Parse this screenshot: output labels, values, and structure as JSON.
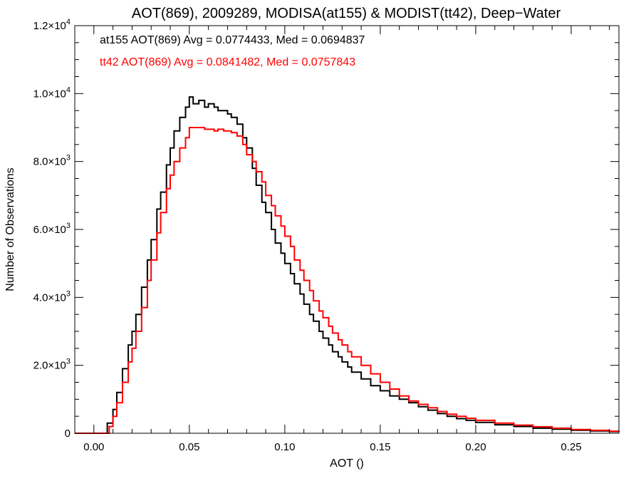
{
  "chart_data": {
    "type": "line",
    "title": "AOT(869), 2009289, MODISA(at155) & MODIST(tt42), Deep−Water",
    "xlabel": "AOT ()",
    "ylabel": "Number of Observations",
    "xlim": [
      -0.01,
      0.275
    ],
    "ylim": [
      0,
      12000
    ],
    "xticks": [
      {
        "value": 0.0,
        "label": "0.00"
      },
      {
        "value": 0.05,
        "label": "0.05"
      },
      {
        "value": 0.1,
        "label": "0.10"
      },
      {
        "value": 0.15,
        "label": "0.15"
      },
      {
        "value": 0.2,
        "label": "0.20"
      },
      {
        "value": 0.25,
        "label": "0.25"
      }
    ],
    "yticks": [
      {
        "value": 0,
        "mant": "0",
        "exp": ""
      },
      {
        "value": 2000,
        "mant": "2.0×10",
        "exp": "3"
      },
      {
        "value": 4000,
        "mant": "4.0×10",
        "exp": "3"
      },
      {
        "value": 6000,
        "mant": "6.0×10",
        "exp": "3"
      },
      {
        "value": 8000,
        "mant": "8.0×10",
        "exp": "3"
      },
      {
        "value": 10000,
        "mant": "1.0×10",
        "exp": "4"
      },
      {
        "value": 12000,
        "mant": "1.2×10",
        "exp": "4"
      }
    ],
    "grid": false,
    "step": "histogram",
    "series": [
      {
        "name": "at155",
        "color": "#000000",
        "annotation": "at155 AOT(869) Avg = 0.0774433, Med = 0.0694837",
        "points": [
          [
            -0.01,
            0
          ],
          [
            0.0,
            0
          ],
          [
            0.005,
            0
          ],
          [
            0.007,
            300
          ],
          [
            0.01,
            700
          ],
          [
            0.012,
            1200
          ],
          [
            0.015,
            1900
          ],
          [
            0.018,
            2600
          ],
          [
            0.02,
            3000
          ],
          [
            0.022,
            3500
          ],
          [
            0.025,
            4300
          ],
          [
            0.028,
            5100
          ],
          [
            0.03,
            5700
          ],
          [
            0.033,
            6600
          ],
          [
            0.035,
            7100
          ],
          [
            0.038,
            7900
          ],
          [
            0.04,
            8400
          ],
          [
            0.042,
            8900
          ],
          [
            0.045,
            9300
          ],
          [
            0.048,
            9600
          ],
          [
            0.05,
            9900
          ],
          [
            0.052,
            9700
          ],
          [
            0.055,
            9800
          ],
          [
            0.058,
            9600
          ],
          [
            0.06,
            9700
          ],
          [
            0.063,
            9600
          ],
          [
            0.065,
            9500
          ],
          [
            0.068,
            9500
          ],
          [
            0.07,
            9400
          ],
          [
            0.072,
            9300
          ],
          [
            0.075,
            9100
          ],
          [
            0.078,
            8700
          ],
          [
            0.08,
            8400
          ],
          [
            0.083,
            7800
          ],
          [
            0.085,
            7300
          ],
          [
            0.088,
            6800
          ],
          [
            0.09,
            6500
          ],
          [
            0.093,
            6000
          ],
          [
            0.095,
            5600
          ],
          [
            0.098,
            5300
          ],
          [
            0.1,
            5000
          ],
          [
            0.103,
            4700
          ],
          [
            0.105,
            4400
          ],
          [
            0.108,
            4100
          ],
          [
            0.11,
            3800
          ],
          [
            0.113,
            3500
          ],
          [
            0.115,
            3300
          ],
          [
            0.118,
            3000
          ],
          [
            0.12,
            2800
          ],
          [
            0.123,
            2600
          ],
          [
            0.125,
            2400
          ],
          [
            0.128,
            2250
          ],
          [
            0.13,
            2100
          ],
          [
            0.133,
            1950
          ],
          [
            0.135,
            1800
          ],
          [
            0.14,
            1600
          ],
          [
            0.145,
            1400
          ],
          [
            0.15,
            1250
          ],
          [
            0.155,
            1100
          ],
          [
            0.16,
            1000
          ],
          [
            0.165,
            900
          ],
          [
            0.17,
            780
          ],
          [
            0.175,
            680
          ],
          [
            0.18,
            580
          ],
          [
            0.185,
            500
          ],
          [
            0.19,
            430
          ],
          [
            0.195,
            380
          ],
          [
            0.2,
            320
          ],
          [
            0.21,
            250
          ],
          [
            0.22,
            200
          ],
          [
            0.23,
            150
          ],
          [
            0.24,
            120
          ],
          [
            0.25,
            90
          ],
          [
            0.26,
            70
          ],
          [
            0.27,
            50
          ],
          [
            0.275,
            40
          ]
        ]
      },
      {
        "name": "tt42",
        "color": "#ff0000",
        "annotation": "tt42 AOT(869) Avg = 0.0841482, Med = 0.0757843",
        "points": [
          [
            -0.01,
            0
          ],
          [
            0.0,
            0
          ],
          [
            0.005,
            0
          ],
          [
            0.008,
            200
          ],
          [
            0.01,
            500
          ],
          [
            0.012,
            900
          ],
          [
            0.015,
            1500
          ],
          [
            0.018,
            2100
          ],
          [
            0.02,
            2500
          ],
          [
            0.022,
            3000
          ],
          [
            0.025,
            3700
          ],
          [
            0.028,
            4500
          ],
          [
            0.03,
            5100
          ],
          [
            0.033,
            5900
          ],
          [
            0.035,
            6500
          ],
          [
            0.038,
            7200
          ],
          [
            0.04,
            7600
          ],
          [
            0.042,
            8000
          ],
          [
            0.045,
            8400
          ],
          [
            0.048,
            8700
          ],
          [
            0.05,
            9000
          ],
          [
            0.052,
            9000
          ],
          [
            0.055,
            9000
          ],
          [
            0.058,
            8950
          ],
          [
            0.06,
            8950
          ],
          [
            0.063,
            8900
          ],
          [
            0.065,
            8950
          ],
          [
            0.068,
            8900
          ],
          [
            0.07,
            8900
          ],
          [
            0.072,
            8850
          ],
          [
            0.075,
            8750
          ],
          [
            0.078,
            8500
          ],
          [
            0.08,
            8200
          ],
          [
            0.083,
            8000
          ],
          [
            0.085,
            7700
          ],
          [
            0.088,
            7400
          ],
          [
            0.09,
            7000
          ],
          [
            0.093,
            6700
          ],
          [
            0.095,
            6400
          ],
          [
            0.098,
            6100
          ],
          [
            0.1,
            5800
          ],
          [
            0.103,
            5500
          ],
          [
            0.105,
            5100
          ],
          [
            0.108,
            4800
          ],
          [
            0.11,
            4500
          ],
          [
            0.113,
            4200
          ],
          [
            0.115,
            3900
          ],
          [
            0.118,
            3600
          ],
          [
            0.12,
            3400
          ],
          [
            0.123,
            3150
          ],
          [
            0.125,
            2950
          ],
          [
            0.128,
            2750
          ],
          [
            0.13,
            2600
          ],
          [
            0.133,
            2400
          ],
          [
            0.135,
            2250
          ],
          [
            0.14,
            2000
          ],
          [
            0.145,
            1750
          ],
          [
            0.15,
            1500
          ],
          [
            0.155,
            1300
          ],
          [
            0.16,
            1100
          ],
          [
            0.165,
            950
          ],
          [
            0.17,
            850
          ],
          [
            0.175,
            750
          ],
          [
            0.18,
            640
          ],
          [
            0.185,
            560
          ],
          [
            0.19,
            500
          ],
          [
            0.195,
            440
          ],
          [
            0.2,
            380
          ],
          [
            0.21,
            300
          ],
          [
            0.22,
            240
          ],
          [
            0.23,
            190
          ],
          [
            0.24,
            150
          ],
          [
            0.25,
            110
          ],
          [
            0.26,
            85
          ],
          [
            0.27,
            60
          ],
          [
            0.275,
            50
          ]
        ]
      }
    ]
  }
}
